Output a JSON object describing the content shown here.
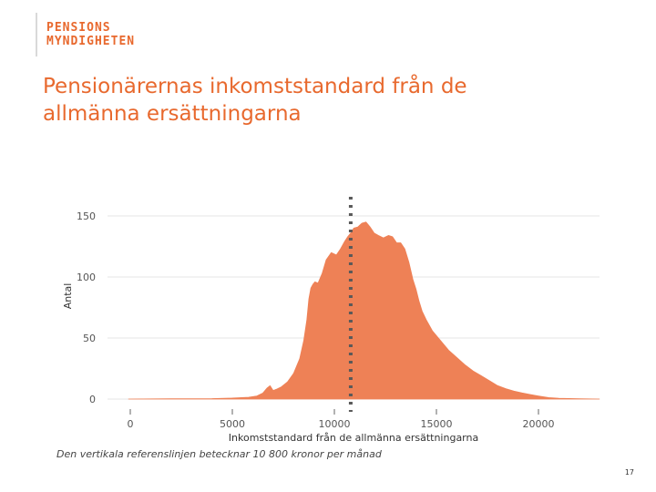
{
  "logo": {
    "line1": "PENSIONS",
    "line2": "MYNDIGHETEN"
  },
  "slide": {
    "title_line1": "Pensionärernas inkomststandard från de",
    "title_line2": "allmänna ersättningarna",
    "footnote": "Den vertikala referenslinjen betecknar 10 800 kronor per månad",
    "page_number": "17"
  },
  "colors": {
    "accent": "#e8692e",
    "fill": "#ee8156",
    "reference_line": "#595959",
    "grid": "#e6e6e6",
    "tick_text": "#555555"
  },
  "chart_data": {
    "type": "area",
    "title": "",
    "xlabel": "Inkomststandard från de allmänna ersättningarna",
    "ylabel": "Antal",
    "xlim": [
      -100,
      23000
    ],
    "ylim": [
      0,
      150
    ],
    "xticks": [
      0,
      5000,
      10000,
      15000,
      20000
    ],
    "xtick_labels": [
      "0",
      "5000",
      "10000",
      "15000",
      "20000"
    ],
    "yticks": [
      0,
      50,
      100,
      150
    ],
    "ytick_labels": [
      "0",
      "50",
      "100",
      "150"
    ],
    "grid": true,
    "reference_line": {
      "x": 10800,
      "style": "dotted"
    },
    "x": [
      -100,
      2000,
      4000,
      5000,
      5800,
      6200,
      6500,
      6700,
      6850,
      7000,
      7150,
      7400,
      7700,
      8000,
      8300,
      8500,
      8650,
      8750,
      8850,
      8950,
      9050,
      9200,
      9400,
      9600,
      9850,
      10100,
      10300,
      10500,
      10650,
      10800,
      10950,
      11150,
      11350,
      11550,
      11750,
      11950,
      12150,
      12400,
      12650,
      12850,
      13050,
      13250,
      13450,
      13650,
      13850,
      14000,
      14150,
      14300,
      14500,
      14800,
      15200,
      15600,
      16000,
      16400,
      16800,
      17200,
      17600,
      18000,
      18400,
      18800,
      19200,
      19600,
      20000,
      20500,
      21000,
      22000,
      23000
    ],
    "y": [
      0,
      0.2,
      0.4,
      0.8,
      1.5,
      2.5,
      5,
      9,
      11,
      7,
      8,
      10,
      14,
      21,
      33,
      48,
      65,
      82,
      91,
      94,
      96,
      95,
      103,
      114,
      120,
      118,
      123,
      129,
      133,
      136,
      140,
      141,
      144,
      145,
      141,
      136,
      134,
      132,
      134,
      133,
      128,
      128,
      123,
      112,
      98,
      90,
      80,
      72,
      65,
      56,
      48,
      40,
      34,
      28,
      23,
      19,
      15,
      11,
      8.5,
      6.5,
      5,
      3.7,
      2.5,
      1.2,
      0.6,
      0.2,
      0
    ]
  }
}
